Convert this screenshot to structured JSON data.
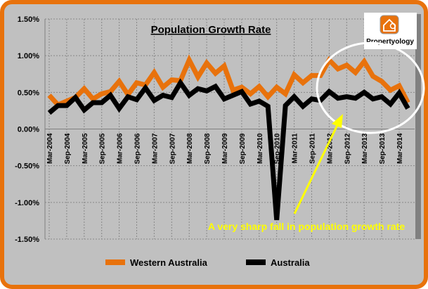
{
  "chart_data": {
    "type": "line",
    "title": "Population Growth Rate",
    "xlabel": "",
    "ylabel": "",
    "ylim": [
      -0.015,
      0.015
    ],
    "yticks": [
      "1.50%",
      "1.00%",
      "0.50%",
      "0.00%",
      "-0.50%",
      "-1.00%",
      "-1.50%"
    ],
    "ytick_values": [
      1.5,
      1.0,
      0.5,
      0.0,
      -0.5,
      -1.0,
      -1.5
    ],
    "x_tick_labels": [
      "Mar-2004",
      "Sep-2004",
      "Mar-2005",
      "Sep-2005",
      "Mar-2006",
      "Sep-2006",
      "Mar-2007",
      "Sep-2007",
      "Mar-2008",
      "Sep-2008",
      "Mar-2009",
      "Sep-2009",
      "Mar-2010",
      "Sep-2010",
      "Mar-2011",
      "Sep-2011",
      "Mar-2012",
      "Sep-2012",
      "Mar-2013",
      "Sep-2013",
      "Mar-2014"
    ],
    "x_start": "Mar-2004",
    "x_frequency": "quarterly",
    "grid": true,
    "legend_placement": "bottom",
    "value_unit": "%",
    "series": [
      {
        "name": "Western Australia",
        "color": "#e8720c",
        "values": [
          0.46,
          0.33,
          0.38,
          0.43,
          0.55,
          0.41,
          0.48,
          0.51,
          0.65,
          0.47,
          0.63,
          0.6,
          0.77,
          0.57,
          0.67,
          0.66,
          0.94,
          0.71,
          0.9,
          0.76,
          0.86,
          0.53,
          0.57,
          0.48,
          0.58,
          0.44,
          0.57,
          0.48,
          0.74,
          0.63,
          0.73,
          0.73,
          0.94,
          0.82,
          0.87,
          0.77,
          0.92,
          0.72,
          0.65,
          0.53,
          0.59,
          0.36
        ]
      },
      {
        "name": "Australia",
        "color": "#000000",
        "values": [
          0.22,
          0.32,
          0.32,
          0.43,
          0.26,
          0.36,
          0.36,
          0.46,
          0.28,
          0.44,
          0.4,
          0.56,
          0.39,
          0.46,
          0.43,
          0.63,
          0.46,
          0.55,
          0.52,
          0.58,
          0.41,
          0.46,
          0.51,
          0.34,
          0.38,
          0.31,
          -1.24,
          0.32,
          0.44,
          0.31,
          0.41,
          0.39,
          0.51,
          0.42,
          0.44,
          0.42,
          0.5,
          0.41,
          0.44,
          0.34,
          0.49,
          0.28
        ]
      }
    ],
    "annotations": [
      {
        "text": "A very sharp fall in population growth rate",
        "color": "#ffff00"
      }
    ]
  },
  "logo": {
    "text": "Propertyology"
  }
}
